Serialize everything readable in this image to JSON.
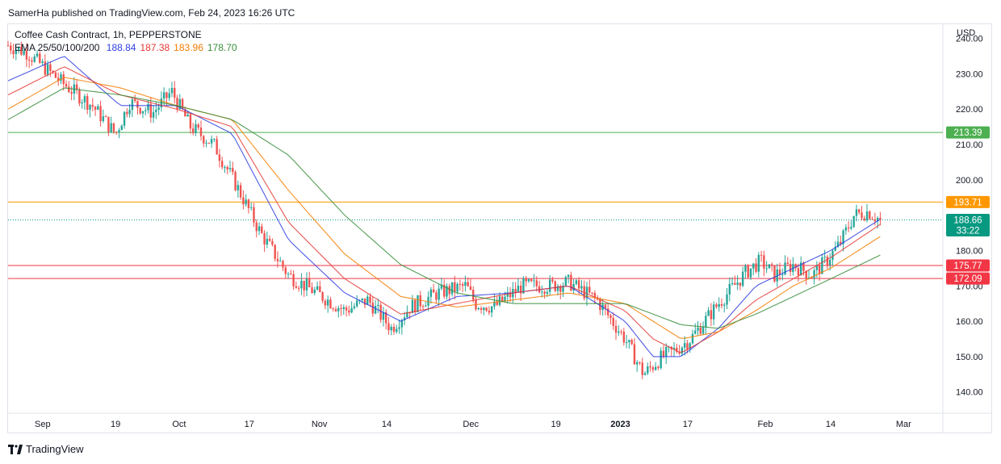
{
  "header": {
    "published": "SamerHa published on TradingView.com, Feb 24, 2023 16:26 UTC"
  },
  "legend": {
    "title": "Coffee Cash Contract, 1h, PEPPERSTONE",
    "ema_label": "EMA 25/50/100/200",
    "ema_values": [
      {
        "value": "188.84",
        "color": "#2f3ee0"
      },
      {
        "value": "187.38",
        "color": "#e53935"
      },
      {
        "value": "183.96",
        "color": "#f57c00"
      },
      {
        "value": "178.70",
        "color": "#388e3c"
      }
    ]
  },
  "axis": {
    "currency": "USD"
  },
  "footer": {
    "brand": "TradingView"
  },
  "chart_data": {
    "type": "line",
    "title": "Coffee Cash Contract, 1h, PEPPERSTONE",
    "ylabel": "USD",
    "ylim": [
      134,
      244
    ],
    "y_ticks": [
      "240.00",
      "230.00",
      "220.00",
      "210.00",
      "200.00",
      "180.00",
      "170.00",
      "160.00",
      "150.00",
      "140.00"
    ],
    "y_tick_values": [
      240,
      230,
      220,
      210,
      200,
      180,
      170,
      160,
      150,
      140
    ],
    "x_ticks": [
      {
        "label": "Sep",
        "x": 0.037
      },
      {
        "label": "19",
        "x": 0.115
      },
      {
        "label": "Oct",
        "x": 0.183
      },
      {
        "label": "17",
        "x": 0.258
      },
      {
        "label": "Nov",
        "x": 0.333
      },
      {
        "label": "14",
        "x": 0.405
      },
      {
        "label": "Dec",
        "x": 0.495
      },
      {
        "label": "19",
        "x": 0.586
      },
      {
        "label": "2023",
        "x": 0.655
      },
      {
        "label": "17",
        "x": 0.727
      },
      {
        "label": "Feb",
        "x": 0.81
      },
      {
        "label": "14",
        "x": 0.88
      },
      {
        "label": "Mar",
        "x": 0.958
      }
    ],
    "colors": {
      "up": "#26a69a",
      "down": "#ef5350"
    },
    "price_series": {
      "name": "Close",
      "x": [
        0,
        0.02,
        0.06,
        0.09,
        0.115,
        0.13,
        0.155,
        0.175,
        0.195,
        0.22,
        0.245,
        0.27,
        0.3,
        0.33,
        0.36,
        0.385,
        0.41,
        0.43,
        0.46,
        0.49,
        0.5,
        0.52,
        0.55,
        0.58,
        0.6,
        0.63,
        0.66,
        0.68,
        0.7,
        0.715,
        0.73,
        0.76,
        0.79,
        0.805,
        0.82,
        0.84,
        0.86,
        0.875,
        0.89,
        0.905,
        0.92,
        0.933
      ],
      "values": [
        238,
        236,
        227,
        221,
        213,
        222,
        219,
        225,
        215,
        210,
        198,
        185,
        173,
        168,
        163,
        166,
        158,
        164,
        168,
        170,
        165,
        164,
        170,
        170,
        171,
        166,
        155,
        145,
        150,
        152,
        155,
        165,
        174,
        177,
        173,
        176,
        173,
        177,
        182,
        190,
        191,
        188.66
      ]
    },
    "series": [
      {
        "name": "EMA 25",
        "color": "#2f3ee0",
        "x": [
          0,
          0.06,
          0.12,
          0.18,
          0.24,
          0.3,
          0.36,
          0.42,
          0.48,
          0.54,
          0.6,
          0.66,
          0.69,
          0.72,
          0.76,
          0.8,
          0.84,
          0.88,
          0.933
        ],
        "values": [
          228,
          235,
          221,
          221,
          213,
          183,
          168,
          160,
          167,
          168,
          170,
          160,
          150,
          150,
          158,
          170,
          175,
          180,
          188.84
        ]
      },
      {
        "name": "EMA 50",
        "color": "#e53935",
        "x": [
          0,
          0.06,
          0.12,
          0.18,
          0.24,
          0.3,
          0.36,
          0.42,
          0.48,
          0.54,
          0.6,
          0.66,
          0.69,
          0.72,
          0.76,
          0.8,
          0.84,
          0.88,
          0.933
        ],
        "values": [
          224,
          232,
          224,
          220,
          215,
          188,
          172,
          162,
          165,
          168,
          170,
          163,
          155,
          151,
          157,
          166,
          172,
          178,
          187.38
        ]
      },
      {
        "name": "EMA 100",
        "color": "#f57c00",
        "x": [
          0,
          0.06,
          0.12,
          0.18,
          0.24,
          0.3,
          0.36,
          0.42,
          0.48,
          0.54,
          0.6,
          0.66,
          0.69,
          0.72,
          0.76,
          0.8,
          0.84,
          0.88,
          0.933
        ],
        "values": [
          220,
          229,
          226,
          221,
          217,
          197,
          179,
          167,
          164,
          166,
          168,
          165,
          160,
          155,
          157,
          163,
          170,
          175,
          183.96
        ]
      },
      {
        "name": "EMA 200",
        "color": "#388e3c",
        "x": [
          0,
          0.06,
          0.12,
          0.18,
          0.24,
          0.3,
          0.36,
          0.42,
          0.48,
          0.54,
          0.6,
          0.66,
          0.69,
          0.72,
          0.76,
          0.8,
          0.84,
          0.88,
          0.933
        ],
        "values": [
          217,
          226,
          224,
          221,
          217,
          207,
          190,
          176,
          168,
          165,
          165,
          165,
          162,
          159,
          158,
          162,
          167,
          172,
          178.7
        ]
      }
    ],
    "horizontal_lines": [
      {
        "value": 213.39,
        "label": "213.39",
        "color": "#4caf50",
        "style": "solid"
      },
      {
        "value": 193.71,
        "label": "193.71",
        "color": "#ff9800",
        "style": "solid"
      },
      {
        "value": 188.66,
        "label": "188.66",
        "sublabel": "33:22",
        "color": "#089981",
        "style": "dotted"
      },
      {
        "value": 175.77,
        "label": "175.77",
        "color": "#f23645",
        "style": "solid"
      },
      {
        "value": 172.09,
        "label": "172.09",
        "color": "#f23645",
        "style": "solid"
      }
    ]
  }
}
